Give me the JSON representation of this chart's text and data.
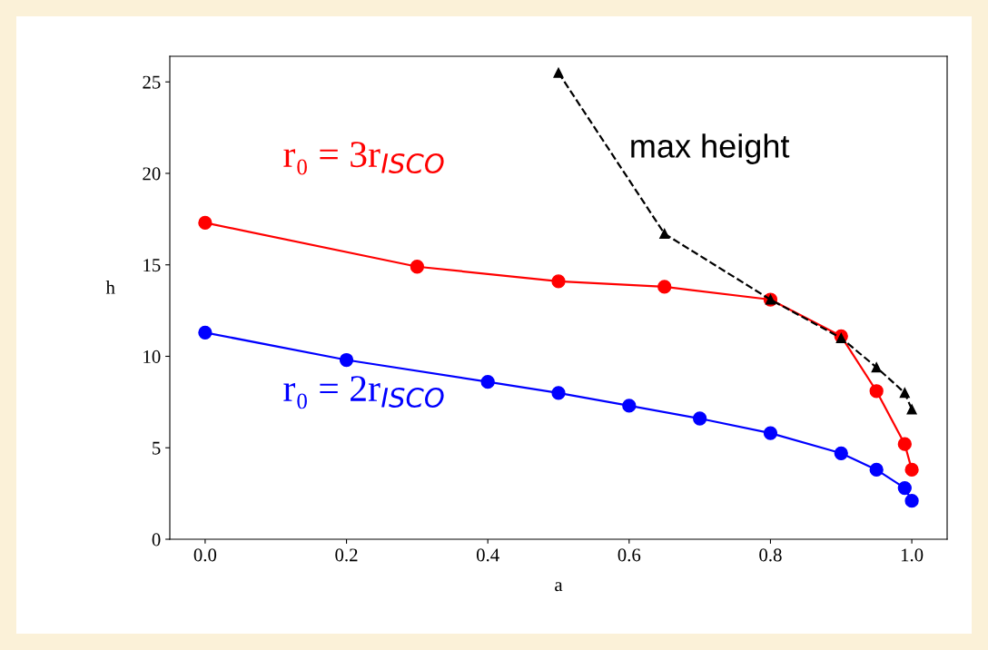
{
  "chart_data": {
    "type": "line",
    "xlabel": "a",
    "ylabel": "h",
    "xlim": [
      -0.05,
      1.05
    ],
    "xticks": [
      {
        "value": 0,
        "label": "0.0"
      },
      {
        "value": 0.2,
        "label": "0.2"
      },
      {
        "value": 0.4,
        "label": "0.4"
      },
      {
        "value": 0.6,
        "label": "0.6"
      },
      {
        "value": 0.8,
        "label": "0.8"
      },
      {
        "value": 1,
        "label": "1.0"
      }
    ],
    "ylim": [
      0,
      26.4
    ],
    "yticks": [
      0,
      5,
      10,
      15,
      20,
      25
    ],
    "grid": false,
    "legend": false,
    "series": [
      {
        "name": "r₀ = 3r$_{ISCO}$",
        "color": "#ff0000",
        "marker": "circle",
        "line_style": "solid",
        "x": [
          0,
          0.3,
          0.5,
          0.65,
          0.8,
          0.9,
          0.95,
          0.99,
          1.0
        ],
        "values": [
          17.3,
          14.9,
          14.1,
          13.8,
          13.1,
          11.1,
          8.1,
          5.2,
          3.8
        ]
      },
      {
        "name": "r₀ = 2r$_{ISCO}$",
        "color": "#0000ff",
        "marker": "circle",
        "line_style": "solid",
        "x": [
          0,
          0.2,
          0.4,
          0.5,
          0.6,
          0.7,
          0.8,
          0.9,
          0.95,
          0.99,
          1.0
        ],
        "values": [
          11.3,
          9.8,
          8.6,
          8.0,
          7.3,
          6.6,
          5.8,
          4.7,
          3.8,
          2.8,
          2.1
        ]
      },
      {
        "name": "max height",
        "color": "#000000",
        "marker": "triangle",
        "line_style": "dashed",
        "x": [
          0.5,
          0.65,
          0.8,
          0.9,
          0.95,
          0.99,
          1.0
        ],
        "values": [
          25.5,
          16.7,
          13.1,
          11.0,
          9.4,
          8.0,
          7.1
        ]
      }
    ]
  }
}
